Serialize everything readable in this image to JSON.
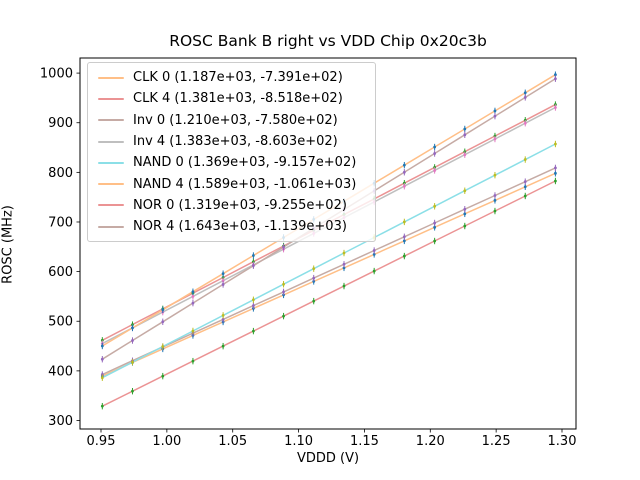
{
  "window": {
    "background": "#ffffff"
  },
  "chart_data": {
    "type": "scatter",
    "title": "ROSC Bank B right vs VDD Chip 0x20c3b",
    "xlabel": "VDDD (V)",
    "ylabel": "ROSC (MHz)",
    "xlim": [
      0.934,
      1.31
    ],
    "ylim": [
      283,
      1030
    ],
    "grid": false,
    "legend_position": "upper left",
    "x_ticks": [
      {
        "v": 0.95,
        "label": "0.95"
      },
      {
        "v": 1.0,
        "label": "1.00"
      },
      {
        "v": 1.05,
        "label": "1.05"
      },
      {
        "v": 1.1,
        "label": "1.10"
      },
      {
        "v": 1.15,
        "label": "1.15"
      },
      {
        "v": 1.2,
        "label": "1.20"
      },
      {
        "v": 1.25,
        "label": "1.25"
      },
      {
        "v": 1.3,
        "label": "1.30"
      }
    ],
    "y_ticks": [
      {
        "v": 300,
        "label": "300"
      },
      {
        "v": 400,
        "label": "400"
      },
      {
        "v": 500,
        "label": "500"
      },
      {
        "v": 600,
        "label": "600"
      },
      {
        "v": 700,
        "label": "700"
      },
      {
        "v": 800,
        "label": "800"
      },
      {
        "v": 900,
        "label": "900"
      },
      {
        "v": 1000,
        "label": "1000"
      }
    ],
    "x_points": [
      0.951,
      0.9739,
      0.9969,
      1.0198,
      1.0427,
      1.0657,
      1.0886,
      1.1115,
      1.1345,
      1.1574,
      1.1803,
      1.2033,
      1.2262,
      1.2491,
      1.2721,
      1.295
    ],
    "series": [
      {
        "name": "CLK 0",
        "legend_label": "CLK 0 (1.187e+03, -7.391e+02)",
        "slope": 1187,
        "intercept": -739.1,
        "line_color": "#ffbf87",
        "marker_color": "#1f77b4"
      },
      {
        "name": "CLK 4",
        "legend_label": "CLK 4 (1.381e+03, -8.518e+02)",
        "slope": 1381,
        "intercept": -851.8,
        "line_color": "#eb9394",
        "marker_color": "#2ca02c"
      },
      {
        "name": "Inv 0",
        "legend_label": "Inv 0 (1.210e+03, -7.580e+02)",
        "slope": 1210,
        "intercept": -758.0,
        "line_color": "#c6aba5",
        "marker_color": "#9467bd"
      },
      {
        "name": "Inv 4",
        "legend_label": "Inv 4 (1.383e+03, -8.603e+02)",
        "slope": 1383,
        "intercept": -860.3,
        "line_color": "#bfbfbf",
        "marker_color": "#e377c2"
      },
      {
        "name": "NAND 0",
        "legend_label": "NAND 0 (1.369e+03, -9.157e+02)",
        "slope": 1369,
        "intercept": -915.7,
        "line_color": "#8bdfe7",
        "marker_color": "#bcbd22"
      },
      {
        "name": "NAND 4",
        "legend_label": "NAND 4 (1.589e+03, -1.061e+03)",
        "slope": 1589,
        "intercept": -1061.0,
        "line_color": "#ffbf87",
        "marker_color": "#1f77b4"
      },
      {
        "name": "NOR 0",
        "legend_label": "NOR 0 (1.319e+03, -9.255e+02)",
        "slope": 1319,
        "intercept": -925.5,
        "line_color": "#eb9394",
        "marker_color": "#2ca02c"
      },
      {
        "name": "NOR 4",
        "legend_label": "NOR 4 (1.643e+03, -1.139e+03)",
        "slope": 1643,
        "intercept": -1139.0,
        "line_color": "#c6aba5",
        "marker_color": "#9467bd"
      }
    ]
  }
}
